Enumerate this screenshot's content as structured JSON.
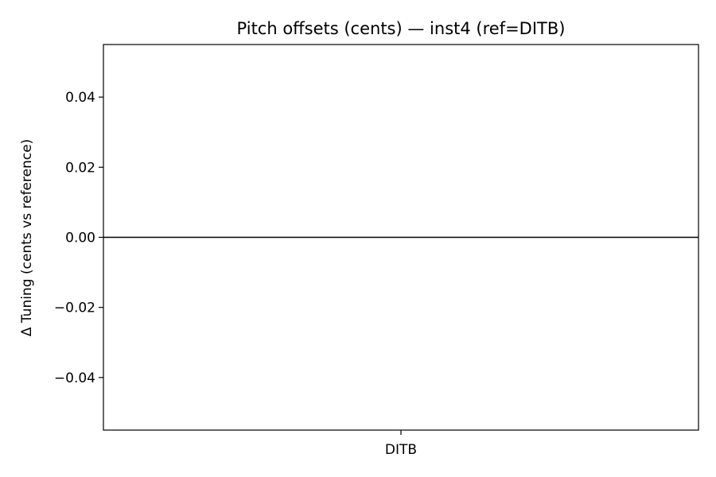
{
  "chart_data": {
    "type": "bar",
    "title": "Pitch offsets (cents) — inst4 (ref=DITB)",
    "xlabel": "",
    "ylabel": "Δ Tuning (cents vs reference)",
    "categories": [
      "DITB"
    ],
    "values": [
      0.0
    ],
    "ylim": [
      -0.055,
      0.055
    ],
    "yticks": [
      0.04,
      0.02,
      0.0,
      -0.02,
      -0.04
    ],
    "ytick_labels": [
      "0.04",
      "0.02",
      "0.00",
      "−0.02",
      "−0.04"
    ],
    "zero_line": true,
    "grid": false,
    "colors": {
      "axes": "#000000",
      "zero_line": "#000000",
      "background": "#ffffff"
    }
  }
}
